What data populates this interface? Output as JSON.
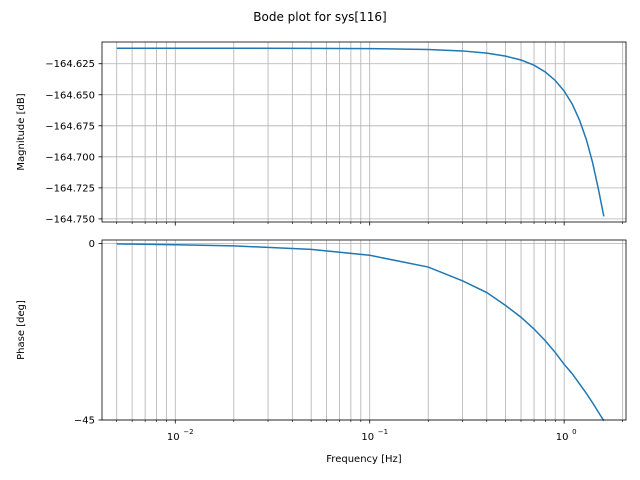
{
  "chart_data": [
    {
      "type": "line",
      "title": "Bode plot for sys[116]",
      "ylabel": "Magnitude [dB]",
      "xscale": "log",
      "xlim": [
        0.0042,
        2.08
      ],
      "ylim": [
        -164.7525,
        -164.6075
      ],
      "grid": true,
      "yticks": [
        -164.625,
        -164.65,
        -164.675,
        -164.7,
        -164.725,
        -164.75
      ],
      "ytick_labels": [
        "−164.625",
        "−164.650",
        "−164.675",
        "−164.700",
        "−164.725",
        "−164.750"
      ],
      "series": [
        {
          "color": "#1f77b4",
          "x": [
            0.005,
            0.01,
            0.02,
            0.05,
            0.1,
            0.2,
            0.3,
            0.4,
            0.5,
            0.6,
            0.7,
            0.8,
            0.9,
            1.0,
            1.1,
            1.2,
            1.3,
            1.4,
            1.5,
            1.6
          ],
          "y": [
            -164.6125,
            -164.6125,
            -164.6125,
            -164.6126,
            -164.6128,
            -164.6135,
            -164.6147,
            -164.6165,
            -164.6189,
            -164.622,
            -164.6262,
            -164.6317,
            -164.6385,
            -164.647,
            -164.6575,
            -164.6705,
            -164.686,
            -164.7045,
            -164.726,
            -164.748
          ]
        }
      ]
    },
    {
      "type": "line",
      "xlabel": "Frequency [Hz]",
      "ylabel": "Phase [deg]",
      "xscale": "log",
      "xlim": [
        0.0042,
        2.08
      ],
      "ylim": [
        -45,
        0.9
      ],
      "grid": true,
      "yticks": [
        0,
        -45
      ],
      "ytick_labels": [
        "0",
        "−45"
      ],
      "xticks": [
        0.01,
        0.1,
        1
      ],
      "xtick_labels": [
        "10",
        "10",
        "10"
      ],
      "xtick_exponents": [
        "−2",
        "−1",
        "0"
      ],
      "series": [
        {
          "color": "#1f77b4",
          "x": [
            0.005,
            0.01,
            0.02,
            0.05,
            0.1,
            0.2,
            0.3,
            0.4,
            0.5,
            0.6,
            0.7,
            0.8,
            0.9,
            1.0,
            1.1,
            1.2,
            1.3,
            1.4,
            1.5,
            1.6
          ],
          "y": [
            -0.1,
            -0.3,
            -0.6,
            -1.5,
            -3.0,
            -6.0,
            -9.5,
            -12.5,
            -15.8,
            -18.8,
            -21.8,
            -24.8,
            -27.8,
            -30.8,
            -33.2,
            -35.8,
            -38.2,
            -40.6,
            -43.0,
            -45.2
          ]
        }
      ]
    }
  ]
}
